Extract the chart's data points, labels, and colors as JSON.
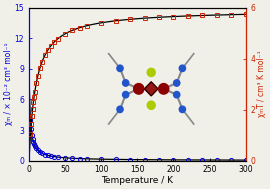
{
  "xlabel": "Temperature / K",
  "ylabel_left": "χₘ / × 10⁻² cm³ mol⁻¹",
  "ylabel_right": "χₘT / cm³ K mol⁻¹",
  "xlim": [
    0,
    300
  ],
  "ylim_left": [
    0,
    15
  ],
  "ylim_right": [
    0,
    6
  ],
  "yticks_left": [
    0,
    3,
    6,
    9,
    12,
    15
  ],
  "yticks_right": [
    0,
    2,
    4,
    6
  ],
  "xticks": [
    0,
    50,
    100,
    150,
    200,
    250,
    300
  ],
  "chi_color": "#0000dd",
  "chiT_color": "#cc2200",
  "fit_color": "black",
  "bg_color": "#f0efe8",
  "figsize": [
    2.7,
    1.89
  ],
  "dpi": 100,
  "chi_C": 14.0,
  "chi_theta": 1.5,
  "chiT_max": 5.92,
  "chiT_tau": 55.0,
  "chiT_start": 0.25
}
